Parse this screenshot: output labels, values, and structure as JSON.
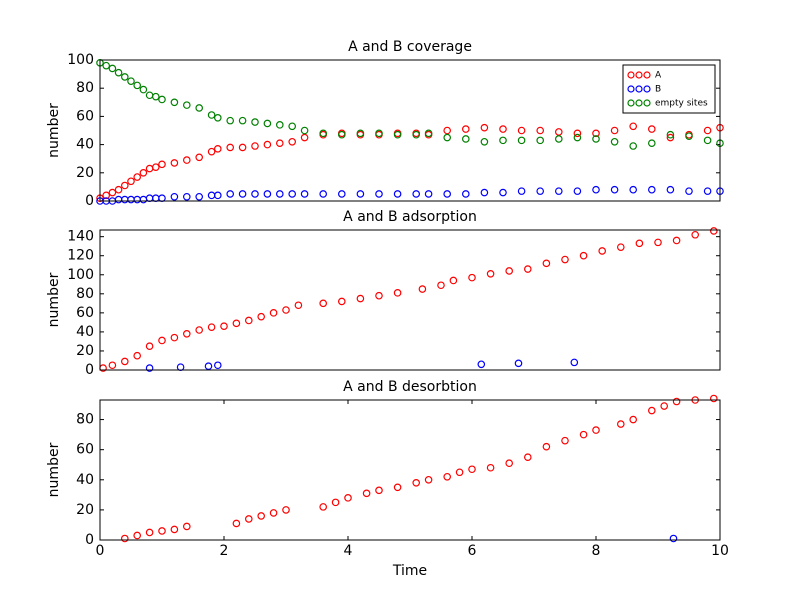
{
  "chart_data": [
    {
      "type": "scatter",
      "title": "A and B coverage",
      "ylabel": "number",
      "xlim": [
        0,
        10
      ],
      "ylim": [
        0,
        100
      ],
      "yticks": [
        0,
        20,
        40,
        60,
        80,
        100
      ],
      "legend": "upper right",
      "x": [
        0,
        0.1,
        0.2,
        0.3,
        0.4,
        0.5,
        0.6,
        0.7,
        0.8,
        0.9,
        1.0,
        1.2,
        1.4,
        1.6,
        1.8,
        1.9,
        2.1,
        2.3,
        2.5,
        2.7,
        2.9,
        3.1,
        3.3,
        3.6,
        3.9,
        4.2,
        4.5,
        4.8,
        5.1,
        5.3,
        5.6,
        5.9,
        6.2,
        6.5,
        6.8,
        7.1,
        7.4,
        7.7,
        8.0,
        8.3,
        8.6,
        8.9,
        9.2,
        9.5,
        9.8,
        10.0
      ],
      "series": [
        {
          "name": "A",
          "color": "#ff0000",
          "values": [
            2,
            4,
            6,
            8,
            11,
            14,
            17,
            20,
            23,
            24,
            26,
            27,
            29,
            31,
            35,
            37,
            38,
            38,
            39,
            40,
            41,
            42,
            45,
            47,
            48,
            47,
            47,
            48,
            48,
            47,
            50,
            51,
            52,
            51,
            50,
            50,
            49,
            48,
            48,
            50,
            53,
            51,
            45,
            47,
            50,
            52
          ]
        },
        {
          "name": "B",
          "color": "#0000ff",
          "values": [
            0,
            0,
            0,
            1,
            1,
            1,
            1,
            1,
            2,
            2,
            2,
            3,
            3,
            3,
            4,
            4,
            5,
            5,
            5,
            5,
            5,
            5,
            5,
            5,
            5,
            5,
            5,
            5,
            5,
            5,
            5,
            5,
            6,
            6,
            7,
            7,
            7,
            7,
            8,
            8,
            8,
            8,
            8,
            7,
            7,
            7
          ]
        },
        {
          "name": "empty sites",
          "color": "#008000",
          "values": [
            98,
            96,
            94,
            91,
            88,
            85,
            82,
            79,
            75,
            74,
            72,
            70,
            68,
            66,
            61,
            59,
            57,
            57,
            56,
            55,
            54,
            53,
            50,
            48,
            47,
            48,
            48,
            47,
            47,
            48,
            45,
            44,
            42,
            43,
            43,
            43,
            44,
            45,
            44,
            42,
            39,
            41,
            47,
            46,
            43,
            41
          ]
        }
      ]
    },
    {
      "type": "scatter",
      "title": "A and B adsorption",
      "ylabel": "number",
      "xlim": [
        0,
        10
      ],
      "ylim": [
        0,
        147
      ],
      "yticks": [
        0,
        20,
        40,
        60,
        80,
        100,
        120,
        140
      ],
      "series": [
        {
          "color": "#ff0000",
          "x": [
            0.05,
            0.2,
            0.4,
            0.6,
            0.8,
            1.0,
            1.2,
            1.4,
            1.6,
            1.8,
            2.0,
            2.2,
            2.4,
            2.6,
            2.8,
            3.0,
            3.2,
            3.6,
            3.9,
            4.2,
            4.5,
            4.8,
            5.2,
            5.5,
            5.7,
            6.0,
            6.3,
            6.6,
            6.9,
            7.2,
            7.5,
            7.8,
            8.1,
            8.4,
            8.7,
            9.0,
            9.3,
            9.6,
            9.9
          ],
          "values": [
            2,
            5,
            9,
            15,
            25,
            31,
            34,
            38,
            42,
            45,
            46,
            49,
            52,
            56,
            60,
            63,
            68,
            70,
            72,
            75,
            78,
            81,
            85,
            89,
            94,
            97,
            101,
            104,
            106,
            112,
            116,
            120,
            125,
            129,
            133,
            134,
            136,
            142,
            146
          ]
        },
        {
          "color": "#0000ff",
          "x": [
            0.8,
            1.3,
            1.75,
            1.9,
            6.15,
            6.75,
            7.65
          ],
          "values": [
            2,
            3,
            4,
            5,
            6,
            7,
            8
          ]
        }
      ]
    },
    {
      "type": "scatter",
      "title": "A and B desorbtion",
      "ylabel": "number",
      "xlabel": "Time",
      "xlim": [
        0,
        10
      ],
      "ylim": [
        0,
        93
      ],
      "xticks": [
        0,
        2,
        4,
        6,
        8,
        10
      ],
      "yticks": [
        0,
        20,
        40,
        60,
        80
      ],
      "series": [
        {
          "color": "#ff0000",
          "x": [
            0.4,
            0.6,
            0.8,
            1.0,
            1.2,
            1.4,
            2.2,
            2.4,
            2.6,
            2.8,
            3.0,
            3.6,
            3.8,
            4.0,
            4.3,
            4.5,
            4.8,
            5.1,
            5.3,
            5.6,
            5.8,
            6.0,
            6.3,
            6.6,
            6.9,
            7.2,
            7.5,
            7.8,
            8.0,
            8.4,
            8.6,
            8.9,
            9.1,
            9.3,
            9.6,
            9.9
          ],
          "values": [
            1,
            3,
            5,
            6,
            7,
            9,
            11,
            14,
            16,
            18,
            20,
            22,
            25,
            28,
            31,
            33,
            35,
            38,
            40,
            42,
            45,
            47,
            48,
            51,
            55,
            62,
            66,
            70,
            73,
            77,
            80,
            86,
            89,
            92,
            93,
            94
          ]
        },
        {
          "color": "#0000ff",
          "x": [
            9.25
          ],
          "values": [
            1
          ]
        }
      ]
    }
  ]
}
